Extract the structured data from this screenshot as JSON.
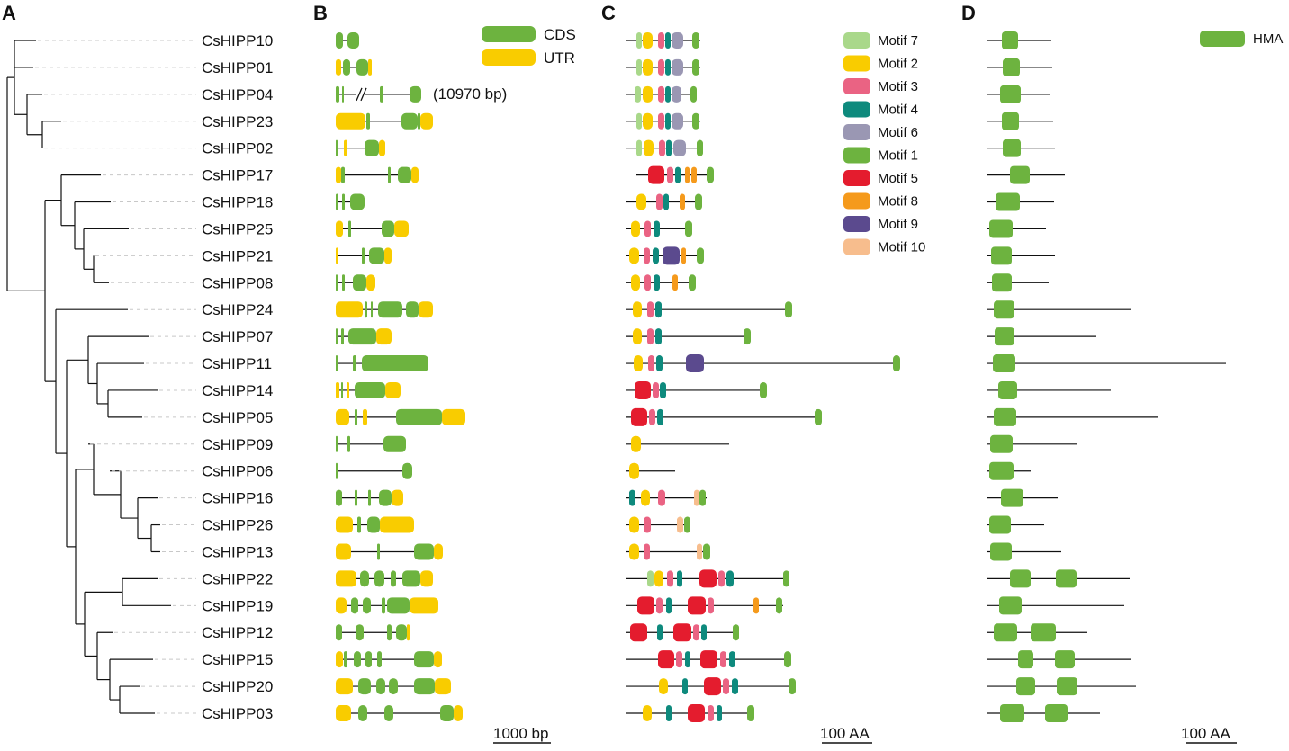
{
  "panels": [
    "A",
    "B",
    "C",
    "D"
  ],
  "genes": [
    "CsHIPP10",
    "CsHIPP01",
    "CsHIPP04",
    "CsHIPP23",
    "CsHIPP02",
    "CsHIPP17",
    "CsHIPP18",
    "CsHIPP25",
    "CsHIPP21",
    "CsHIPP08",
    "CsHIPP24",
    "CsHIPP07",
    "CsHIPP11",
    "CsHIPP14",
    "CsHIPP05",
    "CsHIPP09",
    "CsHIPP06",
    "CsHIPP16",
    "CsHIPP26",
    "CsHIPP13",
    "CsHIPP22",
    "CsHIPP19",
    "CsHIPP12",
    "CsHIPP15",
    "CsHIPP20",
    "CsHIPP03"
  ],
  "colors": {
    "cds": "#6db33f",
    "utr": "#f9cc00",
    "line": "#111111",
    "motifs": {
      "Motif 7": "#a9d88a",
      "Motif 2": "#f9cc00",
      "Motif 3": "#ea6383",
      "Motif 4": "#0e8a7d",
      "Motif 6": "#9a97b3",
      "Motif 1": "#6db33f",
      "Motif 5": "#e41c2e",
      "Motif 8": "#f59a1c",
      "Motif 9": "#5b4a8e",
      "Motif 10": "#f7bd8d"
    }
  },
  "gene_structure": {
    "legend": [
      "CDS",
      "UTR"
    ],
    "long_gene_note": "(10970 bp)",
    "scale_label": "1000 bp"
  },
  "motifs": {
    "legend": [
      "Motif 7",
      "Motif 2",
      "Motif 3",
      "Motif 4",
      "Motif 6",
      "Motif 1",
      "Motif 5",
      "Motif 8",
      "Motif 9",
      "Motif 10"
    ],
    "scale_label": "100 AA"
  },
  "domains": {
    "legend": [
      "HMA"
    ],
    "scale_label": "100 AA"
  }
}
